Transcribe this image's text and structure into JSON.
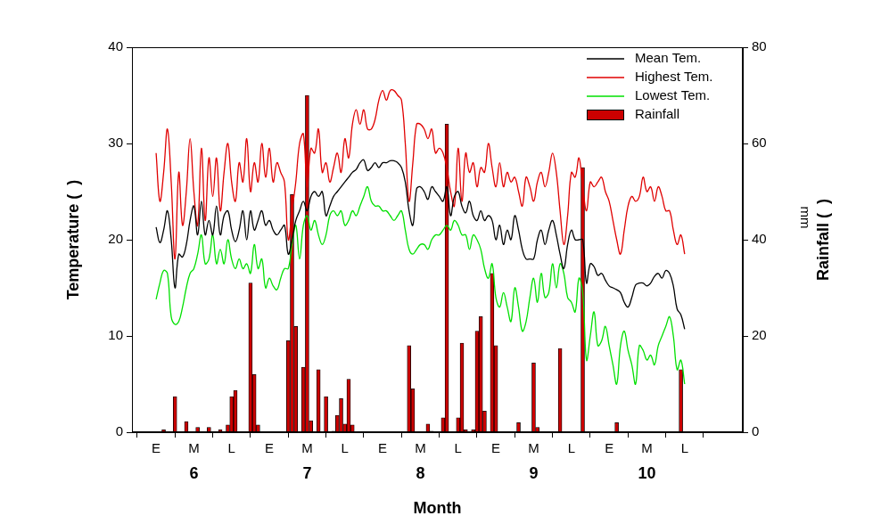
{
  "chart_data": {
    "type": "line",
    "x_label": "Month",
    "y_label": "Temperature (  )",
    "y2_label": "Rainfall (  )",
    "annotations": [
      {
        "text": "mm"
      }
    ],
    "grid": false,
    "legend": "upper right",
    "xlim": [
      0,
      151
    ],
    "xticks": [
      {
        "value": 1,
        "label": "E"
      },
      {
        "value": 11,
        "label": "M"
      },
      {
        "value": 21,
        "label": "L"
      },
      {
        "value": 31,
        "label": "E"
      },
      {
        "value": 41,
        "label": "M"
      },
      {
        "value": 51,
        "label": "L"
      },
      {
        "value": 61,
        "label": "E"
      },
      {
        "value": 71,
        "label": "M"
      },
      {
        "value": 81,
        "label": "L"
      },
      {
        "value": 91,
        "label": "E"
      },
      {
        "value": 101,
        "label": "M"
      },
      {
        "value": 111,
        "label": "L"
      },
      {
        "value": 121,
        "label": "E"
      },
      {
        "value": 131,
        "label": "M"
      },
      {
        "value": 141,
        "label": "L"
      }
    ],
    "x_groups": [
      {
        "value": 11,
        "label": "6"
      },
      {
        "value": 41,
        "label": "7"
      },
      {
        "value": 71,
        "label": "8"
      },
      {
        "value": 101,
        "label": "9"
      },
      {
        "value": 131,
        "label": "10"
      }
    ],
    "ylim": [
      0,
      40
    ],
    "yticks": [
      0,
      10,
      20,
      30,
      40
    ],
    "y2lim": [
      0,
      80
    ],
    "y2ticks": [
      0,
      20,
      40,
      60,
      80
    ],
    "x": [
      1,
      2,
      3,
      4,
      5,
      6,
      7,
      8,
      9,
      10,
      11,
      12,
      13,
      14,
      15,
      16,
      17,
      18,
      19,
      20,
      21,
      22,
      23,
      24,
      25,
      26,
      27,
      28,
      29,
      30,
      31,
      32,
      33,
      34,
      35,
      36,
      37,
      38,
      39,
      40,
      41,
      42,
      43,
      44,
      45,
      46,
      47,
      48,
      49,
      50,
      51,
      52,
      53,
      54,
      55,
      56,
      57,
      58,
      59,
      60,
      61,
      62,
      63,
      64,
      65,
      66,
      67,
      68,
      69,
      70,
      71,
      72,
      73,
      74,
      75,
      76,
      77,
      78,
      79,
      80,
      81,
      82,
      83,
      84,
      85,
      86,
      87,
      88,
      89,
      90,
      91,
      92,
      93,
      94,
      95,
      96,
      97,
      98,
      99,
      100,
      101,
      102,
      103,
      104,
      105,
      106,
      107,
      108,
      109,
      110,
      111,
      112,
      113,
      114,
      115,
      116,
      117,
      118,
      119,
      120,
      121,
      122,
      123,
      124,
      125,
      126,
      127,
      128,
      129,
      130,
      131,
      132,
      133,
      134,
      135,
      136,
      137,
      138,
      139,
      140,
      141
    ],
    "series": [
      {
        "name": "Mean Tem.",
        "color": "#000000",
        "values": [
          21.3,
          19.7,
          21,
          23,
          20,
          15,
          18.5,
          18.2,
          19.5,
          22,
          23.5,
          20.5,
          24,
          20.5,
          22,
          20.5,
          23.5,
          20.5,
          22.5,
          23,
          21,
          19.8,
          21,
          23,
          20,
          23,
          21,
          22,
          23,
          21.5,
          22,
          21,
          20.5,
          21,
          21.5,
          18.5,
          20,
          22,
          23,
          24,
          23,
          24.5,
          25,
          24.5,
          25,
          22.5,
          23.5,
          24.5,
          25,
          25.5,
          26,
          26.5,
          27,
          27.3,
          28,
          28.3,
          27.2,
          27.5,
          28,
          27.5,
          28,
          28,
          28.2,
          28.2,
          28,
          27.5,
          26,
          23,
          21.5,
          25.3,
          25.5,
          25,
          24.2,
          25.5,
          25,
          24.5,
          24,
          25.5,
          22.5,
          24.5,
          25,
          23.5,
          22.8,
          24,
          22.5,
          22,
          23,
          22,
          22.5,
          22,
          20,
          21.5,
          19.5,
          21,
          20,
          22.5,
          21,
          19,
          18,
          18,
          18,
          20,
          21,
          19.5,
          21,
          22,
          20.5,
          18.5,
          17,
          19.5,
          21,
          20,
          20,
          20,
          15.5,
          17.5,
          17.2,
          16.3,
          16.5,
          15.8,
          15.2,
          15,
          14.8,
          14.5,
          13.5,
          13,
          14,
          15.3,
          15.5,
          15.5,
          15.2,
          15.5,
          16.2,
          16.5,
          16,
          16.8,
          16.5,
          15.2,
          12.8,
          12.2,
          10.7
        ]
      },
      {
        "name": "Highest Tem.",
        "color": "#e00000",
        "values": [
          29,
          24,
          27,
          31.5,
          26,
          18,
          27,
          21.5,
          25,
          30.5,
          25,
          21.5,
          29.5,
          22,
          28.5,
          24.5,
          28.5,
          23,
          27,
          30,
          26,
          24,
          28,
          26,
          30.5,
          25,
          28,
          26,
          30,
          26.5,
          29.5,
          26,
          28,
          27,
          26,
          20,
          23,
          26,
          30,
          31,
          25.5,
          29.5,
          29,
          31.5,
          27,
          28,
          26,
          27.5,
          29,
          27,
          30.5,
          28.5,
          32,
          33.5,
          32,
          33.5,
          31.5,
          31.5,
          32.5,
          34.5,
          35.5,
          34.5,
          35.5,
          35.5,
          35,
          34.5,
          30,
          24,
          28,
          32,
          32,
          31.5,
          30.5,
          31.5,
          29,
          29.5,
          29,
          27.5,
          25,
          23.5,
          29.5,
          24,
          29,
          27,
          28,
          25.5,
          27.5,
          27,
          30,
          27.5,
          25.5,
          28,
          25.5,
          27,
          26,
          26.5,
          25,
          23.5,
          26.5,
          25.5,
          24,
          26,
          27,
          25.5,
          27,
          29,
          27,
          23,
          19.5,
          22.5,
          27,
          26.5,
          28.5,
          25.5,
          23,
          26,
          25.5,
          26,
          26.5,
          25,
          24,
          22,
          20,
          18.5,
          21,
          23.5,
          24.5,
          24,
          24.5,
          26.5,
          25,
          25.5,
          24,
          25.5,
          24.5,
          23,
          23,
          21,
          19.5,
          20.5,
          18.5
        ]
      },
      {
        "name": "Lowest Tem.",
        "color": "#00e000",
        "values": [
          13.8,
          15.5,
          16.8,
          16.5,
          12,
          11.2,
          11.5,
          13,
          15,
          16.5,
          17,
          18.5,
          20.5,
          17.5,
          18,
          20.5,
          17.5,
          19,
          17.5,
          20,
          18,
          17,
          18,
          17,
          17.5,
          16.5,
          19.5,
          17,
          18,
          15,
          16,
          15.2,
          14.8,
          16,
          17,
          17,
          19.5,
          21.5,
          18,
          21.5,
          22.5,
          21,
          22,
          20.5,
          19.5,
          20.5,
          22.5,
          23,
          22.5,
          23,
          21.5,
          22,
          23,
          22.5,
          23.5,
          24.5,
          25.5,
          24,
          23.5,
          23.5,
          23,
          23,
          22.5,
          22,
          22.5,
          23,
          21,
          19,
          18.5,
          19,
          19.5,
          19.5,
          19,
          20,
          20.5,
          20.5,
          21,
          21.5,
          21,
          22,
          21.5,
          20.5,
          20.5,
          19,
          20.5,
          20,
          19,
          17,
          16,
          17.5,
          14,
          13,
          14.5,
          13,
          11.5,
          15,
          13,
          10.5,
          11.5,
          14,
          16,
          13.5,
          16.5,
          14,
          14.5,
          17.5,
          15,
          17.5,
          16.5,
          14,
          13.5,
          12.5,
          16,
          14.5,
          7.5,
          10,
          12.5,
          9,
          9.5,
          11,
          9,
          7,
          5,
          9,
          10.5,
          8.5,
          7,
          5,
          9,
          8.5,
          7.5,
          8,
          7,
          9,
          10,
          11,
          12,
          10,
          6.5,
          7.5,
          5
        ]
      },
      {
        "name": "Rainfall",
        "type": "bar",
        "axis": "y2",
        "color": "#cc0000",
        "values": [
          null,
          null,
          0.5,
          null,
          null,
          7.4,
          null,
          null,
          2.2,
          null,
          null,
          1,
          null,
          null,
          1,
          null,
          null,
          0.5,
          null,
          1.5,
          7.4,
          8.7,
          null,
          null,
          null,
          31,
          12,
          1.5,
          null,
          null,
          null,
          null,
          null,
          null,
          null,
          19,
          49.4,
          22,
          null,
          13.5,
          70,
          2.4,
          null,
          13,
          null,
          7.4,
          null,
          0.2,
          3.5,
          7,
          1.7,
          11,
          1.5,
          null,
          null,
          null,
          null,
          null,
          null,
          null,
          null,
          null,
          null,
          null,
          null,
          null,
          null,
          18,
          9,
          null,
          null,
          null,
          1.7,
          0.2,
          null,
          null,
          3,
          64,
          null,
          null,
          3,
          18.5,
          0.5,
          null,
          0.5,
          21,
          24,
          4.4,
          null,
          33,
          18,
          null,
          null,
          null,
          null,
          null,
          2,
          null,
          null,
          null,
          14.4,
          1,
          null,
          null,
          null,
          null,
          null,
          17.4,
          null,
          null,
          null,
          null,
          null,
          55,
          null,
          null,
          null,
          null,
          null,
          null,
          null,
          null,
          2,
          null,
          null,
          null,
          null,
          null,
          null,
          null,
          null,
          null,
          null,
          null,
          null,
          null,
          null,
          null,
          null,
          13,
          null
        ]
      }
    ]
  }
}
